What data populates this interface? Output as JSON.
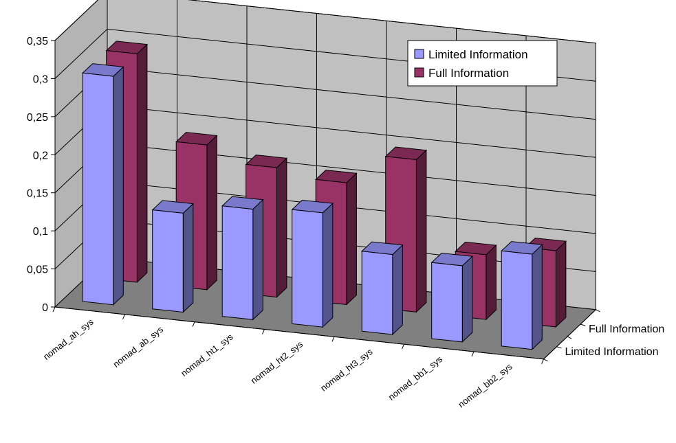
{
  "chart_data": {
    "type": "bar",
    "title": "",
    "xlabel": "",
    "ylabel": "",
    "categories": [
      "nomad_ah_sys",
      "nomad_ab_sys",
      "nomad_ht1_sys",
      "nomad_ht2_sys",
      "nomad_ht3_sys",
      "nomad_bb1_sys",
      "nomad_bb2_sys"
    ],
    "series": [
      {
        "name": "Limited Information",
        "color": "#9999ff",
        "values": [
          0.3,
          0.13,
          0.145,
          0.15,
          0.105,
          0.1,
          0.125
        ]
      },
      {
        "name": "Full Information",
        "color": "#993366",
        "values": [
          0.3,
          0.19,
          0.17,
          0.16,
          0.2,
          0.085,
          0.1
        ]
      }
    ],
    "ylim": [
      0,
      0.35
    ],
    "yticks": [
      "0",
      "0,05",
      "0,1",
      "0,15",
      "0,2",
      "0,25",
      "0,3",
      "0,35"
    ],
    "depth_labels": [
      "Full Information",
      "Limited Information"
    ],
    "grid": true,
    "legend": "top-right",
    "style": "3d-column"
  }
}
